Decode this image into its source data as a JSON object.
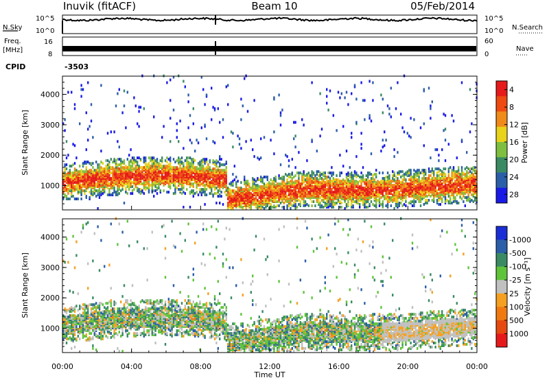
{
  "header": {
    "station": "Inuvik (fitACF)",
    "beam": "Beam 10",
    "date": "05/Feb/2014"
  },
  "chart_data": [
    {
      "type": "line",
      "panel": "noise",
      "left_label": "N.Sky",
      "right_label": "N.Search",
      "left_ticks": [
        "10^5",
        "10^0"
      ],
      "right_ticks": [
        "10^5",
        "10^0"
      ],
      "scale": "log",
      "ylim": [
        1,
        100000
      ]
    },
    {
      "type": "line",
      "panel": "frequency",
      "left_label": "Freq.",
      "left_unit": "[MHz]",
      "left_ticks": [
        "16",
        "8"
      ],
      "ylim_left": [
        8,
        16
      ],
      "right_label": "Nave",
      "right_ticks": [
        "60",
        "0"
      ],
      "ylim_right": [
        0,
        60
      ]
    },
    {
      "type": "text",
      "panel": "cpid",
      "label": "CPID",
      "value": "-3503"
    },
    {
      "type": "heatmap",
      "panel": "power",
      "ylabel": "Slant Range [km]",
      "yticks": [
        "1000",
        "2000",
        "3000",
        "4000"
      ],
      "ylim": [
        200,
        4600
      ],
      "xlim": [
        0,
        24
      ],
      "colorbar": {
        "label": "Power [dB]",
        "ticks": [
          "4",
          "8",
          "12",
          "16",
          "20",
          "24",
          "28"
        ],
        "colors": [
          "#1a1ae6",
          "#2b5ea8",
          "#3a8a64",
          "#7fbf3f",
          "#e8d21a",
          "#f08a1a",
          "#ee4a12",
          "#e61a1a"
        ]
      }
    },
    {
      "type": "heatmap",
      "panel": "velocity",
      "ylabel": "Slant Range [km]",
      "yticks": [
        "1000",
        "2000",
        "3000",
        "4000"
      ],
      "ylim": [
        200,
        4600
      ],
      "xlabel": "Time UT",
      "xticks": [
        "00:00",
        "04:00",
        "08:00",
        "12:00",
        "16:00",
        "20:00",
        "00:00"
      ],
      "xlim": [
        0,
        24
      ],
      "colorbar": {
        "label": "Velocity [m s⁻¹]",
        "ticks": [
          "1000",
          "500",
          "100",
          "25",
          "-25",
          "-100",
          "-500",
          "-1000"
        ],
        "colors": [
          "#1a2ed6",
          "#2b5ea8",
          "#3a8a64",
          "#5fc43a",
          "#c0c0c0",
          "#f5a020",
          "#f07a10",
          "#e64a10",
          "#e61a1a"
        ]
      }
    }
  ]
}
